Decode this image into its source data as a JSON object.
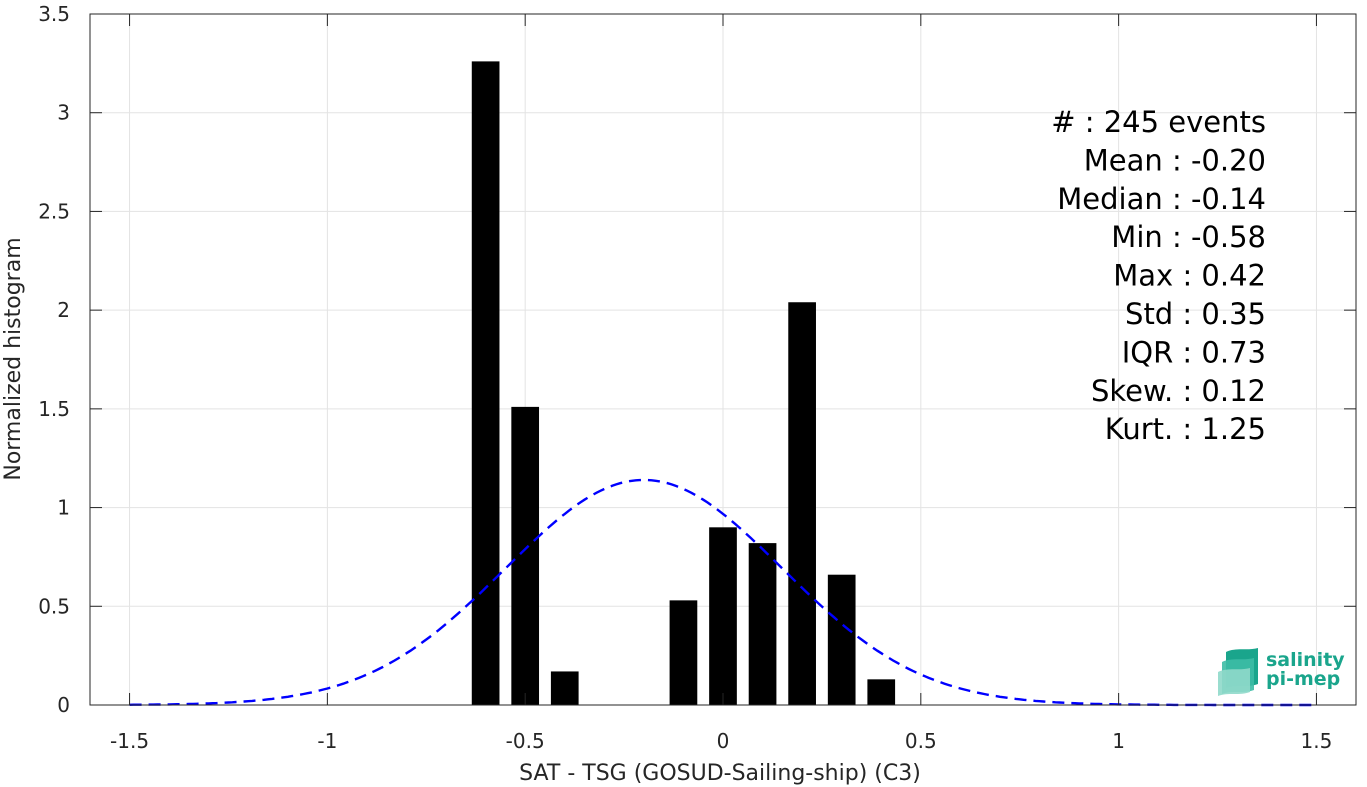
{
  "chart_data": {
    "type": "bar",
    "xlabel": "SAT - TSG (GOSUD-Sailing-ship) (C3)",
    "ylabel": "Normalized histogram",
    "xlim": [
      -1.6,
      1.6
    ],
    "ylim": [
      0,
      3.5
    ],
    "xticks": [
      -1.5,
      -1,
      -0.5,
      0,
      0.5,
      1,
      1.5
    ],
    "xtick_labels": [
      "-1.5",
      "-1",
      "-0.5",
      "0",
      "0.5",
      "1",
      "1.5"
    ],
    "yticks": [
      0,
      0.5,
      1,
      1.5,
      2,
      2.5,
      3,
      3.5
    ],
    "ytick_labels": [
      "0",
      "0.5",
      "1",
      "1.5",
      "2",
      "2.5",
      "3",
      "3.5"
    ],
    "grid": true,
    "bar_width": 0.07,
    "bars": [
      {
        "x": -0.6,
        "value": 3.26
      },
      {
        "x": -0.5,
        "value": 1.51
      },
      {
        "x": -0.4,
        "value": 0.17
      },
      {
        "x": -0.1,
        "value": 0.53
      },
      {
        "x": 0.0,
        "value": 0.9
      },
      {
        "x": 0.1,
        "value": 0.82
      },
      {
        "x": 0.2,
        "value": 2.04
      },
      {
        "x": 0.3,
        "value": 0.66
      },
      {
        "x": 0.4,
        "value": 0.13
      }
    ],
    "fit": {
      "type": "gaussian",
      "mean": -0.2,
      "std": 0.35,
      "x_range": [
        -1.5,
        1.5
      ],
      "color": "#0000ff",
      "style": "dashed"
    },
    "annotations": [
      "#  : 245 events",
      "Mean : -0.20",
      "Median : -0.14",
      "Min : -0.58",
      "Max : 0.42",
      "Std : 0.35",
      "IQR : 0.73",
      "Skew. : 0.12",
      "Kurt. : 1.25"
    ],
    "bar_color": "#000000"
  },
  "logo": {
    "line1": "salinity",
    "line2": "pi-mep",
    "color": "#1aa58c"
  }
}
